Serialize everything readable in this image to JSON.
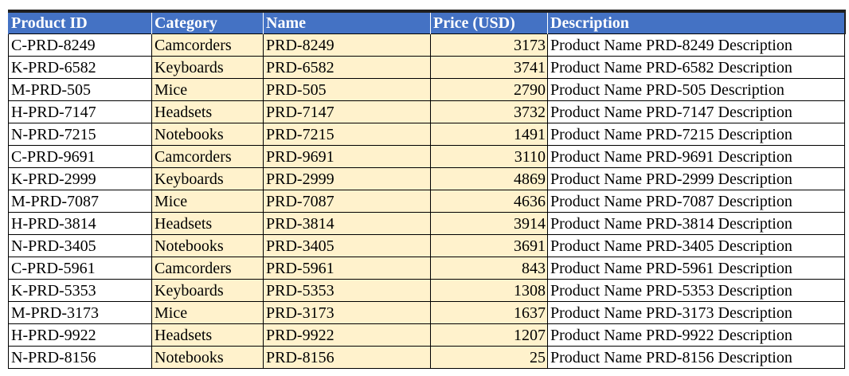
{
  "table": {
    "headers": [
      "Product ID",
      "Category",
      "Name",
      "Price (USD)",
      "Description"
    ],
    "rows": [
      [
        "C-PRD-8249",
        "Camcorders",
        "PRD-8249",
        "3173",
        "Product Name PRD-8249 Description"
      ],
      [
        "K-PRD-6582",
        "Keyboards",
        "PRD-6582",
        "3741",
        "Product Name PRD-6582 Description"
      ],
      [
        "M-PRD-505",
        "Mice",
        "PRD-505",
        "2790",
        "Product Name PRD-505 Description"
      ],
      [
        "H-PRD-7147",
        "Headsets",
        "PRD-7147",
        "3732",
        "Product Name PRD-7147 Description"
      ],
      [
        "N-PRD-7215",
        "Notebooks",
        "PRD-7215",
        "1491",
        "Product Name PRD-7215 Description"
      ],
      [
        "C-PRD-9691",
        "Camcorders",
        "PRD-9691",
        "3110",
        "Product Name PRD-9691 Description"
      ],
      [
        "K-PRD-2999",
        "Keyboards",
        "PRD-2999",
        "4869",
        "Product Name PRD-2999 Description"
      ],
      [
        "M-PRD-7087",
        "Mice",
        "PRD-7087",
        "4636",
        "Product Name PRD-7087 Description"
      ],
      [
        "H-PRD-3814",
        "Headsets",
        "PRD-3814",
        "3914",
        "Product Name PRD-3814 Description"
      ],
      [
        "N-PRD-3405",
        "Notebooks",
        "PRD-3405",
        "3691",
        "Product Name PRD-3405 Description"
      ],
      [
        "C-PRD-5961",
        "Camcorders",
        "PRD-5961",
        "843",
        "Product Name PRD-5961 Description"
      ],
      [
        "K-PRD-5353",
        "Keyboards",
        "PRD-5353",
        "1308",
        "Product Name PRD-5353 Description"
      ],
      [
        "M-PRD-3173",
        "Mice",
        "PRD-3173",
        "1637",
        "Product Name PRD-3173 Description"
      ],
      [
        "H-PRD-9922",
        "Headsets",
        "PRD-9922",
        "1207",
        "Product Name PRD-9922 Description"
      ],
      [
        "N-PRD-8156",
        "Notebooks",
        "PRD-8156",
        "25",
        "Product Name PRD-8156 Description"
      ]
    ]
  },
  "colors": {
    "header_bg": "#4472c4",
    "header_text": "#ffffff",
    "highlight_bg": "#fff2cc",
    "border": "#000000"
  }
}
